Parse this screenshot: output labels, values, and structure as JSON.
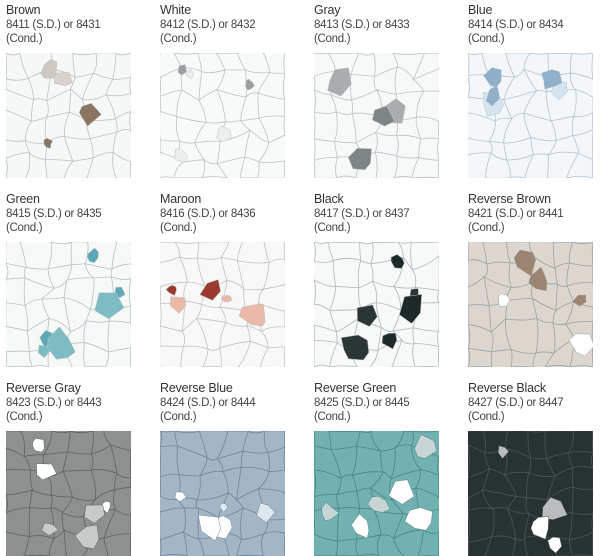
{
  "swatches": [
    {
      "name": "Brown",
      "code": "8411 (S.D.) or 8431 (Cond.)",
      "base": "#f6f7f7",
      "vein": "#b9c3c8",
      "chips": [
        "#8b7561",
        "#d8d2cb",
        "#cfc8c0"
      ]
    },
    {
      "name": "White",
      "code": "8412 (S.D.) or 8432 (Cond.)",
      "base": "#f8f9f9",
      "vein": "#b9c3c8",
      "chips": [
        "#eceeee",
        "#9aa0a0"
      ]
    },
    {
      "name": "Gray",
      "code": "8413 (S.D.) or 8433 (Cond.)",
      "base": "#f7f8f8",
      "vein": "#b9c3c8",
      "chips": [
        "#7f8484",
        "#a9adad"
      ]
    },
    {
      "name": "Blue",
      "code": "8414 (S.D.) or 8434 (Cond.)",
      "base": "#f4f7f9",
      "vein": "#b3c3cf",
      "chips": [
        "#8fb0c8",
        "#d6e4ef"
      ]
    },
    {
      "name": "Green",
      "code": "8415 (S.D.) or 8435 (Cond.)",
      "base": "#f7f9f9",
      "vein": "#b3c3c6",
      "chips": [
        "#5ea9b6",
        "#7ebcc4"
      ]
    },
    {
      "name": "Maroon",
      "code": "8416 (S.D.) or 8436 (Cond.)",
      "base": "#f8f8f8",
      "vein": "#bcc3c6",
      "chips": [
        "#eab9a8",
        "#9b3b30"
      ]
    },
    {
      "name": "Black",
      "code": "8417 (S.D.) or 8437 (Cond.)",
      "base": "#f7f8f8",
      "vein": "#aeb8bd",
      "chips": [
        "#1e2a28",
        "#2b3634"
      ]
    },
    {
      "name": "Reverse Brown",
      "code": "8421 (S.D.) or 8441 (Cond.)",
      "base": "#dcd6ce",
      "vein": "#9aa3a6",
      "chips": [
        "#9c8570",
        "#ffffff"
      ]
    },
    {
      "name": "Reverse Gray",
      "code": "8423 (S.D.) or 8443 (Cond.)",
      "base": "#8c908f",
      "vein": "#5d6263",
      "chips": [
        "#ffffff",
        "#c9cbcb"
      ]
    },
    {
      "name": "Reverse Blue",
      "code": "8424 (S.D.) or 8444 (Cond.)",
      "base": "#a2b6c6",
      "vein": "#6f8699",
      "chips": [
        "#ffffff",
        "#dfe7ee"
      ]
    },
    {
      "name": "Reverse Green",
      "code": "8425 (S.D.) or 8445 (Cond.)",
      "base": "#72b1b1",
      "vein": "#4a8586",
      "chips": [
        "#ffffff",
        "#c7d6d4"
      ]
    },
    {
      "name": "Reverse Black",
      "code": "8427 (S.D.) or 8447 (Cond.)",
      "base": "#283232",
      "vein": "#4a5555",
      "chips": [
        "#ffffff",
        "#b9bdbd"
      ]
    }
  ]
}
